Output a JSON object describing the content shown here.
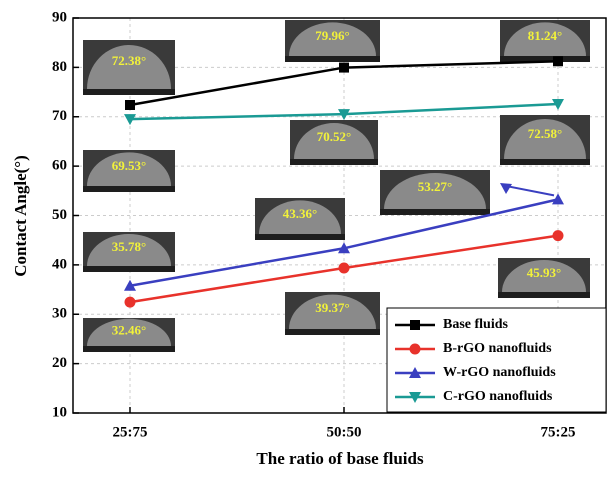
{
  "chart_data": {
    "type": "line",
    "x_label": "The ratio of base fluids",
    "y_label": "Contact Angle(°)",
    "categories": [
      "25:75",
      "50:50",
      "75:25"
    ],
    "series": [
      {
        "name": "Base fluids",
        "color": "#000000",
        "marker": "square",
        "values": [
          72.38,
          79.96,
          81.24
        ],
        "value_labels": [
          "72.38°",
          "79.96°",
          "81.24°"
        ]
      },
      {
        "name": "B-rGO nanofluids",
        "color": "#e8322b",
        "marker": "circle",
        "values": [
          32.46,
          39.37,
          45.93
        ],
        "value_labels": [
          "32.46°",
          "39.37°",
          "45.93°"
        ]
      },
      {
        "name": "W-rGO nanofluids",
        "color": "#3a3fc0",
        "marker": "triangle-up",
        "values": [
          35.78,
          43.36,
          53.27
        ],
        "value_labels": [
          "35.78°",
          "43.36°",
          "53.27°"
        ]
      },
      {
        "name": "C-rGO nanofluids",
        "color": "#1a9a94",
        "marker": "triangle-down",
        "values": [
          69.53,
          70.52,
          72.58
        ],
        "value_labels": [
          "69.53°",
          "70.52°",
          "72.58°"
        ]
      }
    ],
    "ylim": [
      10,
      90
    ],
    "yticks": [
      10,
      20,
      30,
      40,
      50,
      60,
      70,
      80,
      90
    ],
    "grid": true,
    "legend": "lower right"
  }
}
